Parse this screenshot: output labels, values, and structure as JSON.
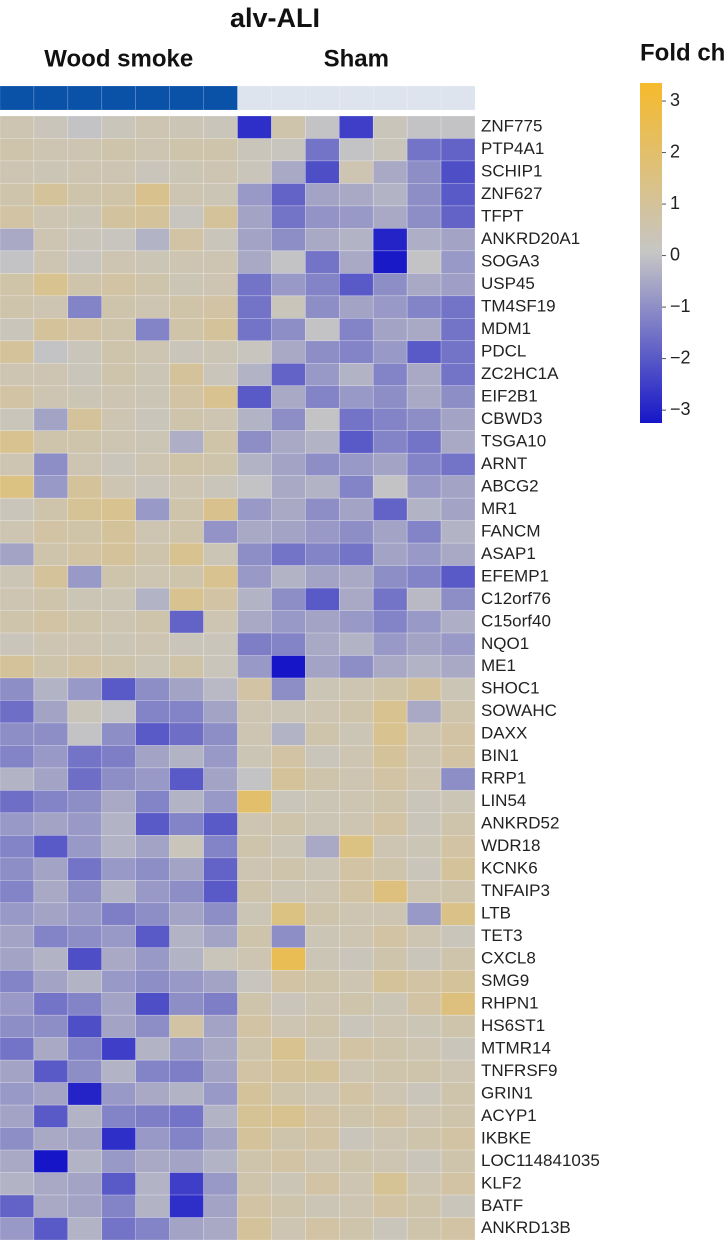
{
  "chart_data": {
    "type": "heatmap",
    "title": "alv-ALI",
    "groups": [
      {
        "name": "Wood smoke",
        "color": "#0a52a8",
        "columns": 7
      },
      {
        "name": "Sham",
        "color": "#dde4ee",
        "columns": 7
      }
    ],
    "rows": [
      "ZNF775",
      "PTP4A1",
      "SCHIP1",
      "ZNF627",
      "TFPT",
      "ANKRD20A1",
      "SOGA3",
      "USP45",
      "TM4SF19",
      "MDM1",
      "PDCL",
      "ZC2HC1A",
      "EIF2B1",
      "CBWD3",
      "TSGA10",
      "ARNT",
      "ABCG2",
      "MR1",
      "FANCM",
      "ASAP1",
      "EFEMP1",
      "C12orf76",
      "C15orf40",
      "NQO1",
      "ME1",
      "SHOC1",
      "SOWAHC",
      "DAXX",
      "BIN1",
      "RRP1",
      "LIN54",
      "ANKRD52",
      "WDR18",
      "KCNK6",
      "TNFAIP3",
      "LTB",
      "TET3",
      "CXCL8",
      "SMG9",
      "RHPN1",
      "HS6ST1",
      "MTMR14",
      "TNFRSF9",
      "GRIN1",
      "ACYP1",
      "IKBKE",
      "LOC114841035",
      "KLF2",
      "BATF",
      "ANKRD13B"
    ],
    "values": [
      [
        0.5,
        0.3,
        0,
        0.3,
        0.5,
        0.4,
        0.3,
        -2.8,
        0.6,
        0,
        -2.5,
        0.3,
        0,
        0
      ],
      [
        0.6,
        0.5,
        0.5,
        0.6,
        0.5,
        0.6,
        0.6,
        0.3,
        0.2,
        -1.5,
        0,
        0.3,
        -1.5,
        -1.8
      ],
      [
        0.5,
        0.4,
        0.5,
        0.5,
        0.3,
        0.4,
        0.5,
        0.3,
        -0.5,
        -2.2,
        0.5,
        -0.5,
        -1,
        -2.2
      ],
      [
        0.6,
        1,
        0.6,
        0.7,
        1.3,
        0.5,
        0.4,
        -0.8,
        -1.8,
        -0.6,
        -0.5,
        -0.3,
        -1,
        -2
      ],
      [
        0.8,
        0.5,
        0.4,
        0.9,
        1,
        0.2,
        1,
        -0.6,
        -1.5,
        -0.9,
        -0.8,
        -0.5,
        -1,
        -1.8
      ],
      [
        -0.5,
        0.5,
        0.3,
        0.2,
        -0.3,
        0.8,
        0.3,
        -0.6,
        -1,
        -0.5,
        -0.3,
        -3,
        -0.4,
        -0.6
      ],
      [
        0,
        0.5,
        0.2,
        0.5,
        0.4,
        0.5,
        0.5,
        -0.5,
        0,
        -1.5,
        -0.5,
        -3.2,
        0,
        -0.8
      ],
      [
        0.7,
        1.2,
        0.6,
        0.8,
        0.6,
        0.4,
        0.5,
        -1.5,
        -0.8,
        -1.2,
        -2,
        -1,
        -0.5,
        -0.7
      ],
      [
        0.6,
        0.5,
        -1.2,
        0.6,
        0.5,
        0.7,
        0.8,
        -1.5,
        0.3,
        -1,
        -0.6,
        -0.8,
        -1.2,
        -1.5
      ],
      [
        0.3,
        1,
        0.8,
        0.6,
        -1.2,
        0.7,
        1,
        -1.5,
        -1,
        0,
        -1.2,
        -0.6,
        -0.5,
        -1.5
      ],
      [
        1,
        0,
        0.3,
        0.6,
        0.5,
        0.3,
        0.4,
        0.2,
        -0.5,
        -1,
        -1.2,
        -0.8,
        -2,
        -1.5
      ],
      [
        0.5,
        0.5,
        0.3,
        0.6,
        0.4,
        1,
        0.3,
        -0.3,
        -1.8,
        -0.8,
        -0.3,
        -1.2,
        -0.5,
        -1.5
      ],
      [
        0.8,
        0.5,
        0.4,
        0.5,
        0.4,
        0.8,
        1.2,
        -2,
        -0.5,
        -1.2,
        -0.8,
        -1,
        -0.5,
        -1
      ],
      [
        0.3,
        -0.6,
        1,
        0.5,
        0.3,
        0.6,
        0.5,
        -0.3,
        -1,
        0,
        -1.5,
        -1.2,
        -1,
        -0.6
      ],
      [
        1.2,
        0.6,
        0.6,
        0.5,
        0.4,
        -0.4,
        0.7,
        -1,
        -0.5,
        -0.3,
        -2,
        -1.2,
        -1.5,
        -0.5
      ],
      [
        0.5,
        -1,
        0.5,
        0.3,
        0.5,
        0.7,
        0.6,
        -0.3,
        -0.6,
        -1,
        -0.8,
        -0.6,
        -1.2,
        -1.5
      ],
      [
        1.5,
        -0.8,
        1,
        0.5,
        0.3,
        0.5,
        0.3,
        0,
        -0.5,
        -0.3,
        -1.2,
        0,
        -0.8,
        -0.6
      ],
      [
        0.3,
        0.6,
        1.1,
        1.2,
        -0.8,
        0.6,
        1.3,
        -0.8,
        -0.5,
        -1,
        -0.6,
        -1.8,
        -0.3,
        -0.6
      ],
      [
        0.5,
        0.8,
        0.7,
        1,
        0.5,
        0.6,
        -0.9,
        -0.5,
        -0.6,
        -0.8,
        -1,
        -0.6,
        -1.2,
        -0.3
      ],
      [
        -0.6,
        0.6,
        0.8,
        1,
        0.6,
        1.2,
        0.4,
        -1,
        -1.5,
        -1.2,
        -1.5,
        -0.6,
        -0.8,
        -0.5
      ],
      [
        0.4,
        1,
        -0.8,
        0.6,
        0.5,
        0.6,
        1.2,
        -0.8,
        -0.3,
        -0.6,
        -0.5,
        -1,
        -1.2,
        -2
      ],
      [
        0.5,
        0.6,
        0.4,
        0.4,
        -0.3,
        1.2,
        0.8,
        -0.3,
        -1,
        -2,
        -0.5,
        -1.5,
        -0.2,
        -1
      ],
      [
        0.6,
        0.8,
        0.6,
        0.5,
        0.6,
        -1.8,
        0.5,
        -0.5,
        -0.8,
        -0.6,
        -0.8,
        -1.2,
        -0.8,
        -0.4
      ],
      [
        0.3,
        0.5,
        0.5,
        0.4,
        0.5,
        0.3,
        0.3,
        -1.3,
        -1.2,
        -0.5,
        -0.3,
        -0.8,
        -0.6,
        -0.8
      ],
      [
        1,
        0.6,
        0.8,
        0.6,
        0.4,
        0.7,
        0.3,
        -0.8,
        -3.3,
        -0.6,
        -1,
        -0.5,
        -0.3,
        -0.5
      ],
      [
        -1,
        -0.3,
        -0.8,
        -2,
        -1,
        -0.6,
        -0.2,
        0.8,
        -1,
        0.4,
        0.5,
        0.7,
        1,
        0.4
      ],
      [
        -1.6,
        -0.6,
        0.3,
        0,
        -1.2,
        -1.2,
        -0.6,
        0.5,
        0.4,
        0.5,
        0.6,
        1.2,
        -0.5,
        0.6
      ],
      [
        -1,
        -1,
        0,
        -1,
        -2,
        -1.6,
        -1,
        0.5,
        -0.3,
        0.6,
        0.4,
        1.2,
        0.5,
        0.8
      ],
      [
        -1.2,
        -0.8,
        -1.5,
        -1.3,
        -0.6,
        -0.3,
        -0.8,
        0.4,
        0.8,
        0.3,
        0.5,
        1,
        0.5,
        0.8
      ],
      [
        -0.3,
        -0.6,
        -1.6,
        -1,
        -0.8,
        -2,
        -0.6,
        0,
        1,
        0.6,
        0.5,
        0.8,
        0.5,
        -1
      ],
      [
        -1.6,
        -1.2,
        -1,
        -0.5,
        -1.2,
        -0.3,
        -0.8,
        2,
        0.3,
        0.4,
        0.5,
        0.6,
        0.3,
        0.4
      ],
      [
        -0.8,
        -0.6,
        -0.8,
        -0.3,
        -2,
        -1.2,
        -2,
        0.5,
        0.6,
        0.4,
        0.5,
        0.8,
        0.3,
        0.6
      ],
      [
        -1.2,
        -2,
        -0.8,
        -0.3,
        -0.6,
        0.3,
        -1.2,
        0.6,
        0.4,
        -0.5,
        1.5,
        0.5,
        0.4,
        0.8
      ],
      [
        -1,
        -0.6,
        -1.5,
        -0.8,
        -1,
        -0.6,
        -1.8,
        0.5,
        0.6,
        0.4,
        0.8,
        0.6,
        0.3,
        1
      ],
      [
        -1.2,
        -0.5,
        -1,
        -0.3,
        -0.8,
        -1,
        -2,
        0.6,
        0.4,
        0.5,
        0.8,
        1.6,
        0.5,
        0.6
      ],
      [
        -0.8,
        -0.6,
        -0.8,
        -1.3,
        -1,
        -0.6,
        -1,
        0.4,
        1.5,
        0.6,
        0.5,
        0.5,
        -0.8,
        1.4
      ],
      [
        -0.6,
        -1.2,
        -1,
        -0.8,
        -2,
        -0.3,
        -0.6,
        0.6,
        -1,
        0.4,
        0.5,
        0.8,
        0.5,
        0.3
      ],
      [
        -0.6,
        -0.3,
        -2.2,
        -0.5,
        -0.8,
        -0.3,
        0.3,
        0.5,
        2.5,
        0.4,
        0.3,
        0.6,
        0.3,
        0.6
      ],
      [
        -1.2,
        -0.6,
        -0.3,
        -0.8,
        -1,
        -0.8,
        -0.6,
        0.2,
        0.8,
        0.6,
        0.5,
        1,
        0.8,
        1
      ],
      [
        -0.8,
        -1.5,
        -1.2,
        -0.6,
        -2.2,
        -1,
        -1.3,
        0.6,
        0.3,
        0.5,
        0.6,
        0.4,
        0.8,
        1.6
      ],
      [
        -1,
        -1,
        -2.2,
        -0.6,
        -1,
        0.8,
        -0.6,
        0.8,
        0.5,
        0.6,
        0.3,
        0.5,
        0.4,
        0.6
      ],
      [
        -1.5,
        -0.5,
        -1.2,
        -2.5,
        -0.3,
        -0.8,
        -0.5,
        0.6,
        1.2,
        0.5,
        0.8,
        0.6,
        0.5,
        0.3
      ],
      [
        -0.6,
        -2,
        -1,
        -0.3,
        -1.2,
        -1.3,
        -0.6,
        0.8,
        1,
        1,
        0.5,
        0.6,
        0.6,
        0.5
      ],
      [
        -0.8,
        -0.6,
        -3,
        -0.8,
        -0.5,
        -0.3,
        -0.8,
        1,
        0.6,
        0.5,
        0.8,
        0.5,
        0.3,
        0.6
      ],
      [
        -0.6,
        -2,
        -0.3,
        -1.2,
        -1.3,
        -1.5,
        -0.3,
        1.1,
        1.2,
        0.8,
        0.6,
        0.8,
        0.5,
        0.6
      ],
      [
        -1,
        -0.5,
        -0.6,
        -2.8,
        -0.8,
        -1.2,
        -0.6,
        1,
        0.6,
        0.8,
        0.3,
        0.5,
        0.6,
        0.8
      ],
      [
        -0.5,
        -3.3,
        -0.3,
        -0.8,
        -0.5,
        -0.6,
        -0.3,
        0.6,
        0.8,
        0.5,
        0.6,
        0.5,
        0.3,
        0.6
      ],
      [
        -0.3,
        -0.5,
        -0.6,
        -2,
        -0.3,
        -2.5,
        -0.8,
        0.6,
        0.4,
        0.8,
        0.5,
        1.1,
        0.5,
        0.8
      ],
      [
        -1.8,
        -0.5,
        -0.6,
        -1.2,
        -0.3,
        -2.8,
        -0.6,
        0.8,
        0.6,
        0.4,
        0.5,
        0.8,
        0.6,
        0.3
      ],
      [
        -0.8,
        -2,
        -0.3,
        -1.5,
        -1.2,
        -0.6,
        -0.5,
        1,
        0.5,
        0.8,
        0.6,
        0.3,
        0.6,
        0.8
      ]
    ],
    "colorbar": {
      "label": "Fold change",
      "lim": [
        -3.25,
        3.35
      ],
      "colors": [
        "#1616c8",
        "#c6c6c6",
        "#f6ba2c"
      ],
      "ticks": [
        {
          "value": -3,
          "label": "−3"
        },
        {
          "value": -2,
          "label": "−2"
        },
        {
          "value": -1,
          "label": "−1"
        },
        0,
        1,
        2,
        3
      ]
    }
  }
}
